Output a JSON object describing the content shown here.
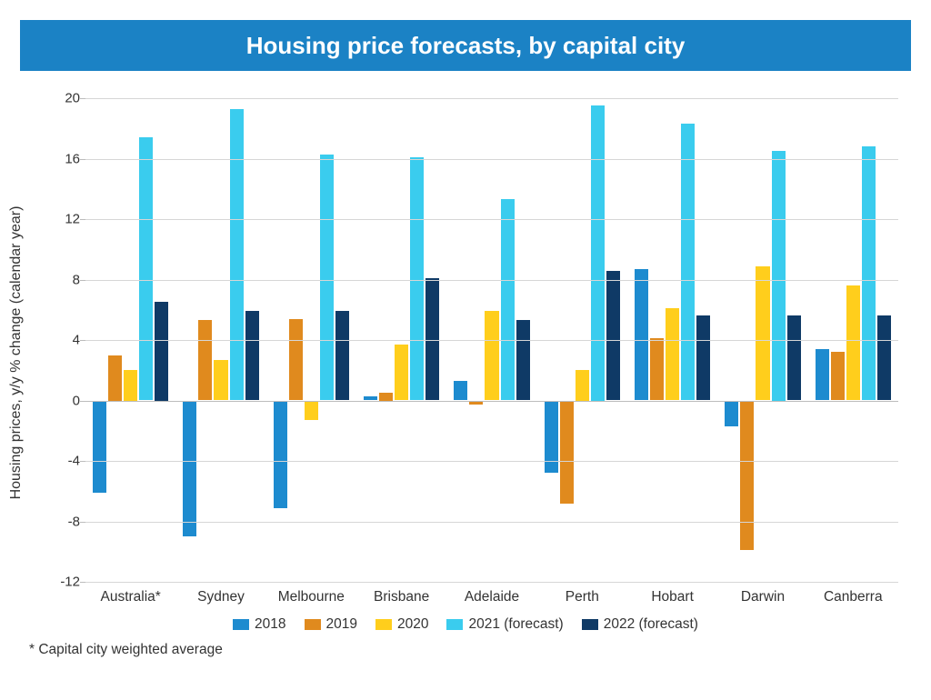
{
  "title": "Housing price forecasts, by capital city",
  "title_bar_color": "#1b82c5",
  "title_text_color": "#ffffff",
  "title_fontsize": 26,
  "y_axis_label": "Housing prices, y/y % change (calendar year)",
  "footnote": "* Capital city weighted average",
  "chart": {
    "type": "bar-grouped",
    "background_color": "#ffffff",
    "grid_color": "#d6d6d6",
    "axis_color": "#bcbcbc",
    "label_fontsize": 15.5,
    "ylim": [
      -12,
      20
    ],
    "ytick_step": 4,
    "yticks": [
      -12,
      -8,
      -4,
      0,
      4,
      8,
      12,
      16,
      20
    ],
    "categories": [
      "Australia*",
      "Sydney",
      "Melbourne",
      "Brisbane",
      "Adelaide",
      "Perth",
      "Hobart",
      "Darwin",
      "Canberra"
    ],
    "series": [
      {
        "name": "2018",
        "color": "#1d8bcf",
        "values": [
          -6.1,
          -9.0,
          -7.1,
          0.3,
          1.3,
          -4.8,
          8.7,
          -1.7,
          3.4
        ]
      },
      {
        "name": "2019",
        "color": "#e08a1e",
        "values": [
          3.0,
          5.3,
          5.4,
          0.5,
          -0.3,
          -6.8,
          4.1,
          -9.9,
          3.2
        ]
      },
      {
        "name": "2020",
        "color": "#ffce1c",
        "values": [
          2.0,
          2.7,
          -1.3,
          3.7,
          5.9,
          2.0,
          6.1,
          8.9,
          7.6
        ]
      },
      {
        "name": "2021 (forecast)",
        "color": "#3accee",
        "values": [
          17.4,
          19.3,
          16.3,
          16.1,
          13.3,
          19.5,
          18.3,
          16.5,
          16.8
        ]
      },
      {
        "name": "2022 (forecast)",
        "color": "#0f3a66",
        "values": [
          6.5,
          5.9,
          5.9,
          8.1,
          5.3,
          8.6,
          5.6,
          5.6,
          5.6
        ]
      }
    ]
  }
}
